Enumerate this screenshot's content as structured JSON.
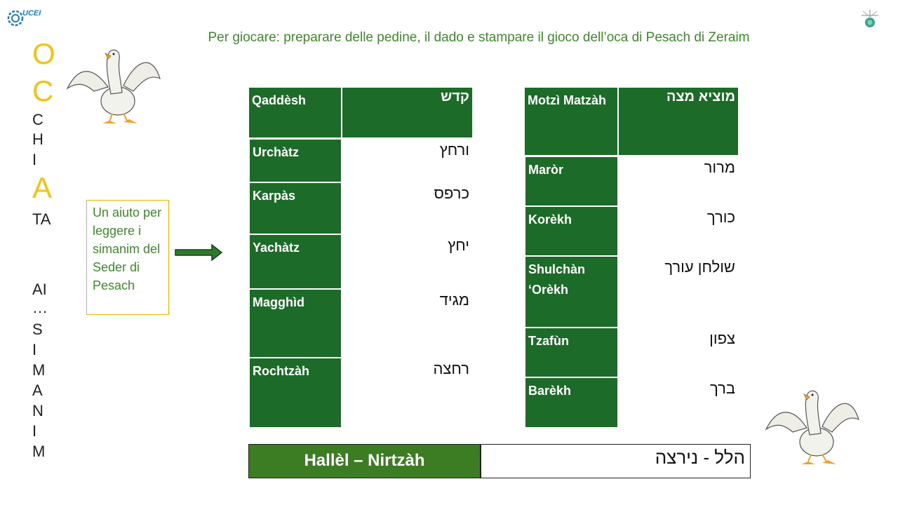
{
  "logo": {
    "text": "UCEI",
    "icon": "ucei-logo-icon"
  },
  "corner_icon": "bug-icon",
  "subtitle": "Per giocare: preparare delle pedine, il dado e stampare il gioco dell’oca di Pesach di Zeraim",
  "vertical_title": [
    "O",
    "C",
    "C",
    "H",
    "I",
    "A",
    "TA",
    "AI",
    "…",
    "S",
    "I",
    "M",
    "A",
    "N",
    "I",
    "M"
  ],
  "help_box": "Un aiuto per leggere i simanim del Seder di Pesach",
  "left_table": [
    {
      "latin": "Qaddèsh",
      "hebrew": "קדש"
    },
    {
      "latin": "Urchàtz",
      "hebrew": "ורחץ"
    },
    {
      "latin": "Karpàs",
      "hebrew": "כרפס"
    },
    {
      "latin": "Yachàtz",
      "hebrew": "יחץ"
    },
    {
      "latin": "Magghìd",
      "hebrew": "מגיד"
    },
    {
      "latin": "Rochtzàh",
      "hebrew": "רחצה"
    }
  ],
  "right_table": [
    {
      "latin": "Motzì Matzàh",
      "hebrew": "מוציא מצה"
    },
    {
      "latin": "Maròr",
      "hebrew": "מרור"
    },
    {
      "latin": "Korèkh",
      "hebrew": "כורך"
    },
    {
      "latin": "Shulchàn ‘Orèkh",
      "hebrew": "שולחן עורך"
    },
    {
      "latin": "Tzafùn",
      "hebrew": "צפון"
    },
    {
      "latin": "Barèkh",
      "hebrew": "ברך"
    }
  ],
  "hallel": {
    "latin": "Hallèl – Nirtzàh",
    "hebrew": "הלל - נירצה"
  },
  "colors": {
    "green_dark": "#1c6b28",
    "green_text": "#3f8a2c",
    "yellow": "#f2c311"
  }
}
